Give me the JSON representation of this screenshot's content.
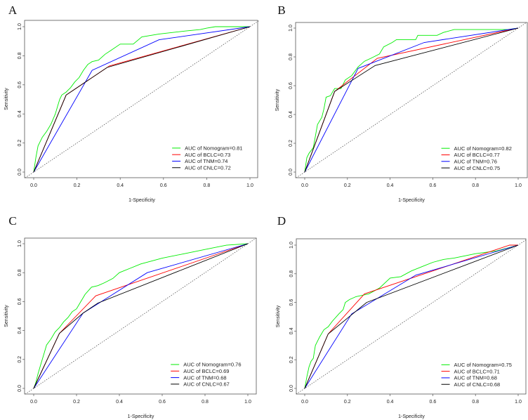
{
  "chart_data": [
    {
      "type": "line",
      "panel": "A",
      "xlabel": "1-Specificity",
      "ylabel": "Sensitivity",
      "xlim": [
        0,
        1
      ],
      "ylim": [
        0,
        1
      ],
      "xticks": [
        "0.0",
        "0.2",
        "0.4",
        "0.6",
        "0.8",
        "1.0"
      ],
      "yticks": [
        "0.0",
        "0.2",
        "0.4",
        "0.6",
        "0.8",
        "1.0"
      ],
      "legend_position": "bottom-right",
      "series": [
        {
          "name": "AUC of Nomogram=0.81",
          "color": "#00ee00",
          "points": [
            [
              0,
              0
            ],
            [
              0.01,
              0.1
            ],
            [
              0.02,
              0.18
            ],
            [
              0.04,
              0.24
            ],
            [
              0.06,
              0.28
            ],
            [
              0.08,
              0.33
            ],
            [
              0.1,
              0.4
            ],
            [
              0.11,
              0.45
            ],
            [
              0.12,
              0.5
            ],
            [
              0.13,
              0.53
            ],
            [
              0.15,
              0.55
            ],
            [
              0.17,
              0.58
            ],
            [
              0.19,
              0.62
            ],
            [
              0.21,
              0.65
            ],
            [
              0.23,
              0.7
            ],
            [
              0.25,
              0.74
            ],
            [
              0.27,
              0.76
            ],
            [
              0.3,
              0.77
            ],
            [
              0.33,
              0.81
            ],
            [
              0.36,
              0.84
            ],
            [
              0.4,
              0.88
            ],
            [
              0.46,
              0.88
            ],
            [
              0.5,
              0.93
            ],
            [
              0.58,
              0.95
            ],
            [
              0.7,
              0.97
            ],
            [
              0.77,
              0.98
            ],
            [
              0.8,
              0.99
            ],
            [
              0.84,
              1.0
            ],
            [
              1,
              1
            ]
          ]
        },
        {
          "name": "AUC of BCLC=0.73",
          "color": "#ff0000",
          "points": [
            [
              0,
              0
            ],
            [
              0.15,
              0.53
            ],
            [
              0.35,
              0.73
            ],
            [
              1,
              1
            ]
          ]
        },
        {
          "name": "AUC of TNM=0.74",
          "color": "#0000ff",
          "points": [
            [
              0,
              0
            ],
            [
              0.27,
              0.7
            ],
            [
              0.58,
              0.91
            ],
            [
              1,
              1
            ]
          ]
        },
        {
          "name": "AUC of CNLC=0.72",
          "color": "#000000",
          "points": [
            [
              0,
              0
            ],
            [
              0.15,
              0.53
            ],
            [
              0.34,
              0.72
            ],
            [
              1,
              1
            ]
          ]
        }
      ]
    },
    {
      "type": "line",
      "panel": "B",
      "xlabel": "1-Specificity",
      "ylabel": "Sensitivity",
      "xlim": [
        0,
        1
      ],
      "ylim": [
        0,
        1
      ],
      "xticks": [
        "0.0",
        "0.2",
        "0.4",
        "0.6",
        "0.8",
        "1.0"
      ],
      "yticks": [
        "0.0",
        "0.2",
        "0.4",
        "0.6",
        "0.8",
        "1.0"
      ],
      "legend_position": "bottom-right",
      "series": [
        {
          "name": "AUC of Nomogram=0.82",
          "color": "#00ee00",
          "points": [
            [
              0,
              0
            ],
            [
              0.01,
              0.1
            ],
            [
              0.02,
              0.13
            ],
            [
              0.04,
              0.17
            ],
            [
              0.05,
              0.25
            ],
            [
              0.06,
              0.33
            ],
            [
              0.08,
              0.38
            ],
            [
              0.09,
              0.44
            ],
            [
              0.1,
              0.52
            ],
            [
              0.12,
              0.53
            ],
            [
              0.14,
              0.58
            ],
            [
              0.17,
              0.58
            ],
            [
              0.19,
              0.64
            ],
            [
              0.22,
              0.67
            ],
            [
              0.25,
              0.73
            ],
            [
              0.28,
              0.77
            ],
            [
              0.31,
              0.79
            ],
            [
              0.35,
              0.82
            ],
            [
              0.37,
              0.87
            ],
            [
              0.41,
              0.9
            ],
            [
              0.43,
              0.92
            ],
            [
              0.52,
              0.92
            ],
            [
              0.53,
              0.95
            ],
            [
              0.62,
              0.95
            ],
            [
              0.65,
              0.97
            ],
            [
              0.7,
              0.99
            ],
            [
              0.95,
              0.99
            ],
            [
              1,
              1
            ]
          ]
        },
        {
          "name": "AUC of BCLC=0.77",
          "color": "#ff0000",
          "points": [
            [
              0,
              0
            ],
            [
              0.14,
              0.56
            ],
            [
              0.34,
              0.79
            ],
            [
              1,
              1
            ]
          ]
        },
        {
          "name": "AUC of TNM=0.76",
          "color": "#0000ff",
          "points": [
            [
              0,
              0
            ],
            [
              0.25,
              0.72
            ],
            [
              0.56,
              0.9
            ],
            [
              1,
              1
            ]
          ]
        },
        {
          "name": "AUC of CNLC=0.75",
          "color": "#000000",
          "points": [
            [
              0,
              0
            ],
            [
              0.14,
              0.56
            ],
            [
              0.33,
              0.74
            ],
            [
              1,
              1
            ]
          ]
        }
      ]
    },
    {
      "type": "line",
      "panel": "C",
      "xlabel": "1-Specificity",
      "ylabel": "Sensitivity",
      "xlim": [
        0,
        1
      ],
      "ylim": [
        0,
        1
      ],
      "xticks": [
        "0.0",
        "0.2",
        "0.4",
        "0.6",
        "0.8",
        "1.0"
      ],
      "yticks": [
        "0.0",
        "0.2",
        "0.4",
        "0.6",
        "0.8",
        "1.0"
      ],
      "legend_position": "bottom-right",
      "series": [
        {
          "name": "AUC of Nomogram=0.76",
          "color": "#00ee00",
          "points": [
            [
              0,
              0
            ],
            [
              0.01,
              0.04
            ],
            [
              0.02,
              0.1
            ],
            [
              0.03,
              0.15
            ],
            [
              0.04,
              0.2
            ],
            [
              0.05,
              0.25
            ],
            [
              0.06,
              0.3
            ],
            [
              0.08,
              0.34
            ],
            [
              0.1,
              0.39
            ],
            [
              0.12,
              0.42
            ],
            [
              0.14,
              0.46
            ],
            [
              0.16,
              0.49
            ],
            [
              0.18,
              0.53
            ],
            [
              0.2,
              0.55
            ],
            [
              0.22,
              0.6
            ],
            [
              0.24,
              0.65
            ],
            [
              0.27,
              0.7
            ],
            [
              0.3,
              0.71
            ],
            [
              0.33,
              0.73
            ],
            [
              0.37,
              0.76
            ],
            [
              0.4,
              0.8
            ],
            [
              0.45,
              0.83
            ],
            [
              0.5,
              0.86
            ],
            [
              0.55,
              0.88
            ],
            [
              0.6,
              0.9
            ],
            [
              0.7,
              0.93
            ],
            [
              0.8,
              0.96
            ],
            [
              0.9,
              0.99
            ],
            [
              1,
              1
            ]
          ]
        },
        {
          "name": "AUC of BCLC=0.69",
          "color": "#ff0000",
          "points": [
            [
              0,
              0
            ],
            [
              0.12,
              0.38
            ],
            [
              0.29,
              0.64
            ],
            [
              1,
              1
            ]
          ]
        },
        {
          "name": "AUC of TNM=0.68",
          "color": "#0000ff",
          "points": [
            [
              0,
              0
            ],
            [
              0.23,
              0.52
            ],
            [
              0.53,
              0.8
            ],
            [
              1,
              1
            ]
          ]
        },
        {
          "name": "AUC of CNLC=0.67",
          "color": "#000000",
          "points": [
            [
              0,
              0
            ],
            [
              0.12,
              0.38
            ],
            [
              0.23,
              0.52
            ],
            [
              0.3,
              0.59
            ],
            [
              1,
              1
            ]
          ]
        }
      ]
    },
    {
      "type": "line",
      "panel": "D",
      "xlabel": "1-Specificity",
      "ylabel": "Sensitivity",
      "xlim": [
        0,
        1
      ],
      "ylim": [
        0,
        1
      ],
      "xticks": [
        "0.0",
        "0.2",
        "0.4",
        "0.6",
        "0.8",
        "1.0"
      ],
      "yticks": [
        "0.0",
        "0.2",
        "0.4",
        "0.6",
        "0.8",
        "1.0"
      ],
      "legend_position": "bottom-right",
      "series": [
        {
          "name": "AUC of Nomogram=0.75",
          "color": "#00ee00",
          "points": [
            [
              0,
              0
            ],
            [
              0.01,
              0.08
            ],
            [
              0.02,
              0.15
            ],
            [
              0.03,
              0.19
            ],
            [
              0.04,
              0.21
            ],
            [
              0.05,
              0.3
            ],
            [
              0.07,
              0.36
            ],
            [
              0.09,
              0.41
            ],
            [
              0.11,
              0.43
            ],
            [
              0.13,
              0.47
            ],
            [
              0.16,
              0.52
            ],
            [
              0.18,
              0.55
            ],
            [
              0.19,
              0.6
            ],
            [
              0.21,
              0.62
            ],
            [
              0.24,
              0.64
            ],
            [
              0.27,
              0.65
            ],
            [
              0.3,
              0.66
            ],
            [
              0.35,
              0.7
            ],
            [
              0.4,
              0.77
            ],
            [
              0.45,
              0.78
            ],
            [
              0.5,
              0.82
            ],
            [
              0.55,
              0.85
            ],
            [
              0.6,
              0.88
            ],
            [
              0.65,
              0.9
            ],
            [
              0.7,
              0.91
            ],
            [
              0.8,
              0.94
            ],
            [
              0.9,
              0.96
            ],
            [
              1,
              1
            ]
          ]
        },
        {
          "name": "AUC of BCLC=0.71",
          "color": "#ff0000",
          "points": [
            [
              0,
              0
            ],
            [
              0.11,
              0.38
            ],
            [
              0.28,
              0.66
            ],
            [
              0.96,
              1.0
            ],
            [
              1,
              1
            ]
          ]
        },
        {
          "name": "AUC of TNM=0.68",
          "color": "#0000ff",
          "points": [
            [
              0,
              0
            ],
            [
              0.22,
              0.52
            ],
            [
              0.52,
              0.79
            ],
            [
              1,
              1
            ]
          ]
        },
        {
          "name": "AUC of CNLC=0.68",
          "color": "#000000",
          "points": [
            [
              0,
              0
            ],
            [
              0.11,
              0.38
            ],
            [
              0.29,
              0.6
            ],
            [
              1,
              1
            ]
          ]
        }
      ]
    }
  ]
}
